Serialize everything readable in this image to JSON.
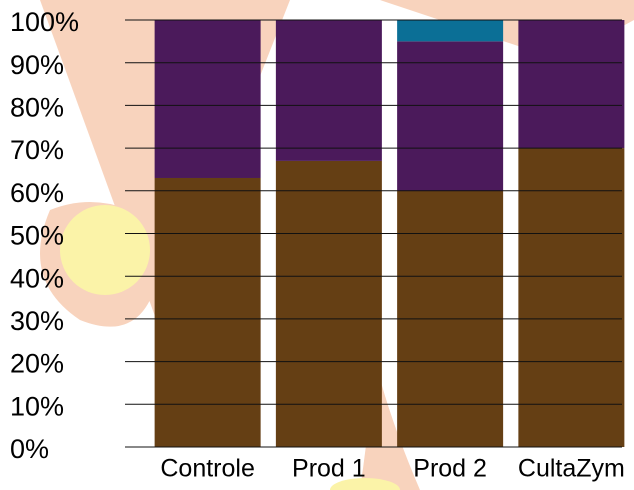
{
  "chart_data": {
    "type": "stacked-bar",
    "categories": [
      "Controle",
      "Prod 1",
      "Prod 2",
      "CultaZym"
    ],
    "series": [
      {
        "color": "#653f14",
        "values": [
          63,
          67,
          60,
          70
        ]
      },
      {
        "color": "#4b1a5b",
        "values": [
          37,
          33,
          35,
          30
        ]
      },
      {
        "color": "#0b6f96",
        "values": [
          0,
          0,
          5,
          0
        ]
      }
    ],
    "ylim": [
      0,
      100
    ],
    "yticks": [
      {
        "value": 0,
        "label": "0%"
      },
      {
        "value": 10,
        "label": "10%"
      },
      {
        "value": 20,
        "label": "20%"
      },
      {
        "value": 30,
        "label": "30%"
      },
      {
        "value": 40,
        "label": "40%"
      },
      {
        "value": 50,
        "label": "50%"
      },
      {
        "value": 60,
        "label": "60%"
      },
      {
        "value": 70,
        "label": "70%"
      },
      {
        "value": 80,
        "label": "80%"
      },
      {
        "value": 90,
        "label": "90%"
      },
      {
        "value": 100,
        "label": "100%"
      }
    ],
    "grid": true
  }
}
